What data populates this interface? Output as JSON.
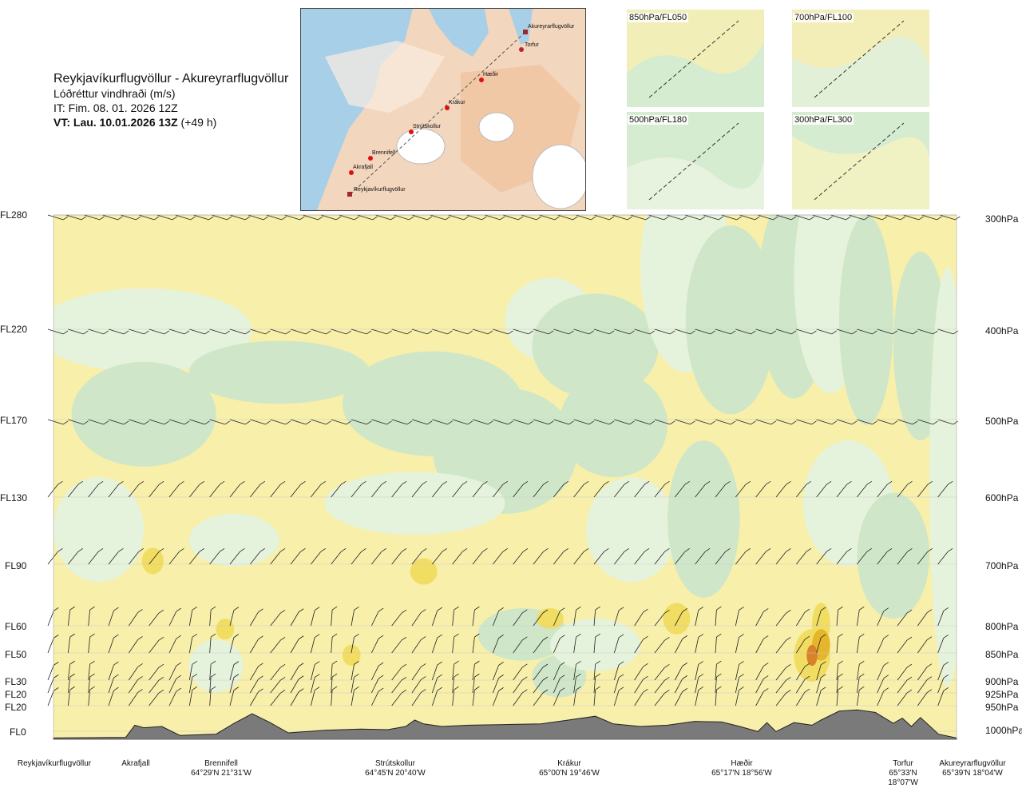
{
  "header": {
    "route": "Reykjavíkurflugvöllur - Akureyrarflugvöllur",
    "subtitle": "Lóðréttur vindhraði (m/s)",
    "issue_time": "IT: Fim. 08. 01. 2026 12Z",
    "valid_time_bold": "VT: Lau. 10.01.2026 13Z",
    "valid_time_offset": "(+49 h)"
  },
  "map": {
    "waypoints": [
      "Akureyrarflugvöllur",
      "Torfur",
      "Hæðir",
      "Krákur",
      "Strútskollur",
      "Brennifell",
      "Akrafjall",
      "Reykjavíkurflugvöllur"
    ]
  },
  "thumbnails": [
    {
      "label": "850hPa/FL050"
    },
    {
      "label": "700hPa/FL100"
    },
    {
      "label": "500hPa/FL180"
    },
    {
      "label": "300hPa/FL300"
    }
  ],
  "chart_data": {
    "type": "heatmap",
    "title": "Reykjavíkurflugvöllur - Akureyrarflugvöllur",
    "variable": "Lóðréttur vindhraði (m/s)",
    "left_axis_levels": [
      "FL280",
      "FL220",
      "FL170",
      "FL130",
      "FL90",
      "FL60",
      "FL50",
      "FL30",
      "FL20",
      "FL20",
      "FL0"
    ],
    "right_axis_levels": [
      "300hPa",
      "400hPa",
      "500hPa",
      "600hPa",
      "700hPa",
      "800hPa",
      "850hPa",
      "900hPa",
      "925hPa",
      "950hPa",
      "1000hPa"
    ],
    "pressure_levels_hpa": [
      300,
      400,
      500,
      600,
      700,
      800,
      850,
      900,
      925,
      950,
      1000
    ],
    "x_locations": [
      {
        "name": "Reykjavíkurflugvöllur",
        "coord": ""
      },
      {
        "name": "Akrafjall",
        "coord": ""
      },
      {
        "name": "Brennifell",
        "coord": "64°29'N 21°31'W"
      },
      {
        "name": "Strútskollur",
        "coord": "64°45'N 20°40'W"
      },
      {
        "name": "Krákur",
        "coord": "65°00'N 19°46'W"
      },
      {
        "name": "Hæðir",
        "coord": "65°17'N 18°56'W"
      },
      {
        "name": "Torfur",
        "coord": "65°33'N 18°07'W"
      },
      {
        "name": "Akureyrarflugvöllur",
        "coord": "65°39'N 18°04'W"
      }
    ],
    "colors": {
      "strong_down": "#cfe7c8",
      "weak_down": "#e6f3dc",
      "neutral": "#fbfbe6",
      "weak_up": "#f7efaa",
      "moderate_up": "#f0dd62",
      "strong_up": "#e6b52c",
      "very_strong_up": "#d9822a",
      "terrain": "#7a7a7a"
    },
    "terrain_profile_m": [
      [
        0,
        0.02
      ],
      [
        0.08,
        0.03
      ],
      [
        0.09,
        0.22
      ],
      [
        0.1,
        0.18
      ],
      [
        0.12,
        0.2
      ],
      [
        0.14,
        0.06
      ],
      [
        0.18,
        0.08
      ],
      [
        0.2,
        0.25
      ],
      [
        0.22,
        0.4
      ],
      [
        0.24,
        0.26
      ],
      [
        0.26,
        0.1
      ],
      [
        0.3,
        0.14
      ],
      [
        0.34,
        0.16
      ],
      [
        0.37,
        0.15
      ],
      [
        0.39,
        0.2
      ],
      [
        0.4,
        0.3
      ],
      [
        0.41,
        0.24
      ],
      [
        0.43,
        0.2
      ],
      [
        0.46,
        0.22
      ],
      [
        0.5,
        0.23
      ],
      [
        0.54,
        0.24
      ],
      [
        0.57,
        0.3
      ],
      [
        0.6,
        0.36
      ],
      [
        0.62,
        0.24
      ],
      [
        0.65,
        0.2
      ],
      [
        0.68,
        0.22
      ],
      [
        0.71,
        0.28
      ],
      [
        0.74,
        0.27
      ],
      [
        0.76,
        0.2
      ],
      [
        0.78,
        0.12
      ],
      [
        0.79,
        0.26
      ],
      [
        0.8,
        0.12
      ],
      [
        0.82,
        0.26
      ],
      [
        0.84,
        0.22
      ],
      [
        0.85,
        0.3
      ],
      [
        0.87,
        0.44
      ],
      [
        0.89,
        0.46
      ],
      [
        0.91,
        0.42
      ],
      [
        0.93,
        0.25
      ],
      [
        0.94,
        0.33
      ],
      [
        0.95,
        0.2
      ],
      [
        0.96,
        0.34
      ],
      [
        0.98,
        0.08
      ],
      [
        1.0,
        0.02
      ]
    ]
  }
}
